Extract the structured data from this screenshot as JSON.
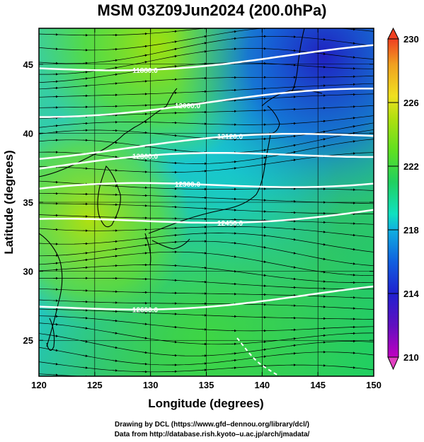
{
  "title": "MSM 03Z09Jun2024 (200.0hPa)",
  "xaxis": {
    "label": "Longitude (degrees)",
    "ticks": [
      120,
      125,
      130,
      135,
      140,
      145,
      150
    ],
    "range": [
      120,
      150
    ]
  },
  "yaxis": {
    "label": "Latitude  (degrees)",
    "ticks": [
      25,
      30,
      35,
      40,
      45
    ],
    "range": [
      22.4,
      47.6
    ]
  },
  "colorbar": {
    "ticks": [
      210,
      214,
      218,
      222,
      226,
      230
    ],
    "range": [
      210,
      230
    ],
    "colors": [
      "#c000c0",
      "#6010c0",
      "#2020d0",
      "#1060e0",
      "#10b0e0",
      "#10e0c0",
      "#20d060",
      "#60e020",
      "#b0e010",
      "#f0e020",
      "#f0a020",
      "#f04020"
    ]
  },
  "contours": [
    {
      "label": "11880.0",
      "lat": 44.7
    },
    {
      "label": "12000.0",
      "lat": 41.6
    },
    {
      "label": "12120.0",
      "lat": 38.6
    },
    {
      "label": "12300.0",
      "lat": 37.5
    },
    {
      "label": "12300.0",
      "lat": 35.6
    },
    {
      "label": "12450.0",
      "lat": 33.3
    },
    {
      "label": "12600.0",
      "lat": 27.3
    }
  ],
  "footer": {
    "line1": "Drawing by DCL (https://www.gfd–dennou.org/library/dcl/)",
    "line2": "Data from http://database.rish.kyoto–u.ac.jp/arch/jmadata/"
  }
}
